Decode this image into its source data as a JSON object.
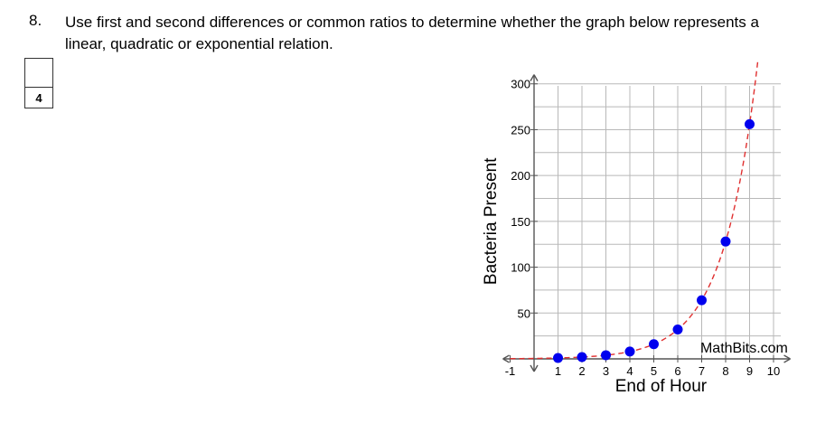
{
  "question": {
    "number": "8.",
    "text": "Use first and second differences or common ratios to determine whether the graph below represents a linear, quadratic or exponential relation."
  },
  "mark_box": {
    "value": "4"
  },
  "chart_data": {
    "type": "scatter",
    "xlabel": "End of Hour",
    "ylabel": "Bacteria Present",
    "watermark": "MathBits.com",
    "xlim": [
      -1,
      10
    ],
    "ylim": [
      0,
      300
    ],
    "x_ticks": [
      -1,
      1,
      2,
      3,
      4,
      5,
      6,
      7,
      8,
      9,
      10
    ],
    "y_ticks": [
      50,
      100,
      150,
      200,
      250,
      300
    ],
    "points": [
      {
        "x": 1,
        "y": 1
      },
      {
        "x": 2,
        "y": 2
      },
      {
        "x": 3,
        "y": 4
      },
      {
        "x": 4,
        "y": 8
      },
      {
        "x": 5,
        "y": 16
      },
      {
        "x": 6,
        "y": 32
      },
      {
        "x": 7,
        "y": 64
      },
      {
        "x": 8,
        "y": 128
      },
      {
        "x": 9,
        "y": 256
      }
    ],
    "curve": "y = 2^(x-1)",
    "grid": true,
    "point_color": "#0000ee",
    "curve_color": "#e03030"
  }
}
